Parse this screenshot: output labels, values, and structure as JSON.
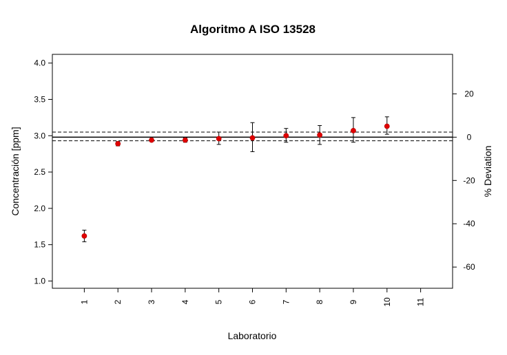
{
  "chart_data": {
    "type": "scatter",
    "title": "Algoritmo A ISO 13528",
    "xlabel": "Laboratorio",
    "ylabel": "Concentración [ppm]",
    "y2label": "% Deviation",
    "x_ticks": [
      "1",
      "2",
      "3",
      "4",
      "5",
      "6",
      "7",
      "8",
      "9",
      "10",
      "11"
    ],
    "y_ticks": [
      "1.0",
      "1.5",
      "2.0",
      "2.5",
      "3.0",
      "3.5",
      "4.0"
    ],
    "y2_ticks": [
      "20",
      "0",
      "-20",
      "-40",
      "-60"
    ],
    "xlim": [
      0.05,
      11.95
    ],
    "ylim": [
      0.9,
      4.12
    ],
    "y2_reference": 2.98,
    "reference_lines": {
      "assigned_value": 2.98,
      "lower_limit": 2.93,
      "upper_limit": 3.05
    },
    "series": [
      {
        "marker_color": "#e00000",
        "x": [
          1,
          2,
          3,
          4,
          5,
          6,
          7,
          8,
          9,
          10
        ],
        "y": [
          1.62,
          2.89,
          2.94,
          2.94,
          2.96,
          2.97,
          3.0,
          3.01,
          3.07,
          3.13
        ],
        "error_low": [
          1.54,
          2.86,
          2.92,
          2.91,
          2.88,
          2.78,
          2.91,
          2.88,
          2.91,
          3.02
        ],
        "error_high": [
          1.7,
          2.92,
          2.96,
          2.97,
          3.05,
          3.18,
          3.1,
          3.14,
          3.25,
          3.26
        ]
      }
    ],
    "grid": false,
    "legend": "none"
  }
}
